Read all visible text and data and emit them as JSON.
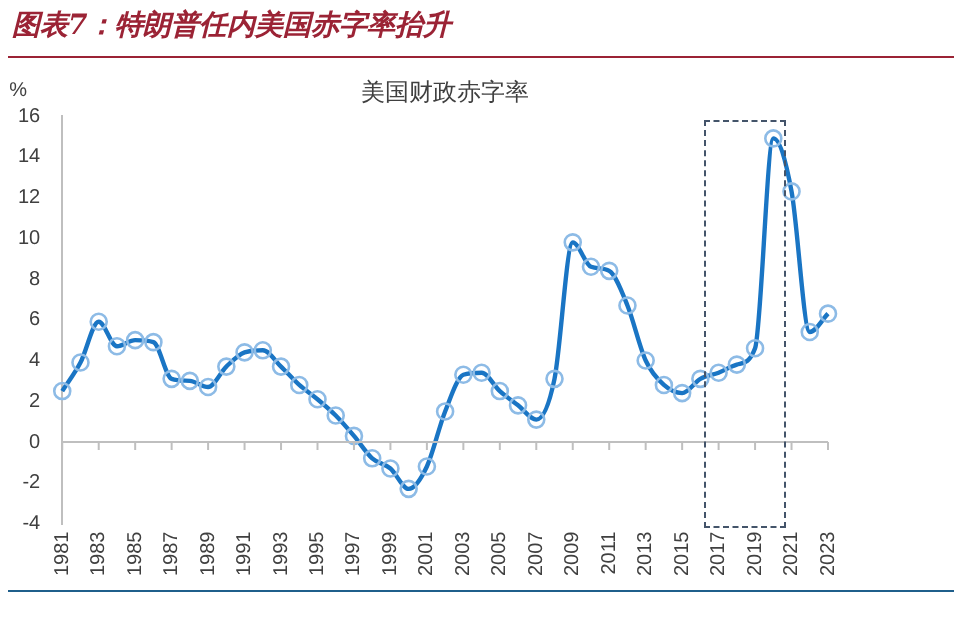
{
  "chart_data": {
    "type": "line",
    "title": "图表7：特朗普任内美国赤字率抬升",
    "subtitle": "美国财政赤字率",
    "ylabel": "%",
    "categories": [
      "1981",
      null,
      "1983",
      null,
      "1985",
      null,
      "1987",
      null,
      "1989",
      null,
      "1991",
      null,
      "1993",
      null,
      "1995",
      null,
      "1997",
      null,
      "1999",
      null,
      "2001",
      null,
      "2003",
      null,
      "2005",
      null,
      "2007",
      null,
      "2009",
      null,
      "2011",
      null,
      "2013",
      null,
      "2015",
      null,
      "2017",
      null,
      "2019",
      null,
      "2021",
      null,
      "2023"
    ],
    "series": [
      {
        "color": "#1a75c4",
        "values": [
          2.5,
          3.9,
          5.9,
          4.7,
          5.0,
          4.9,
          3.1,
          3.0,
          2.7,
          3.7,
          4.4,
          4.5,
          3.7,
          2.8,
          2.1,
          1.3,
          0.3,
          -0.8,
          -1.3,
          -2.3,
          -1.2,
          1.5,
          3.3,
          3.4,
          2.5,
          1.8,
          1.1,
          3.1,
          9.8,
          8.6,
          8.4,
          6.7,
          4.0,
          2.8,
          2.4,
          3.1,
          3.4,
          3.8,
          4.6,
          14.9,
          12.3,
          5.4,
          6.3
        ]
      }
    ],
    "ylim": [
      -4,
      16
    ],
    "yticks": [
      -4,
      -2,
      0,
      2,
      4,
      6,
      8,
      10,
      12,
      14,
      16
    ],
    "grid": false,
    "ref_lines": [
      {
        "axis": "y",
        "value": 0,
        "color": "#bfbfbf"
      }
    ],
    "legend": false,
    "marker": "circle",
    "line_style": "solid"
  }
}
